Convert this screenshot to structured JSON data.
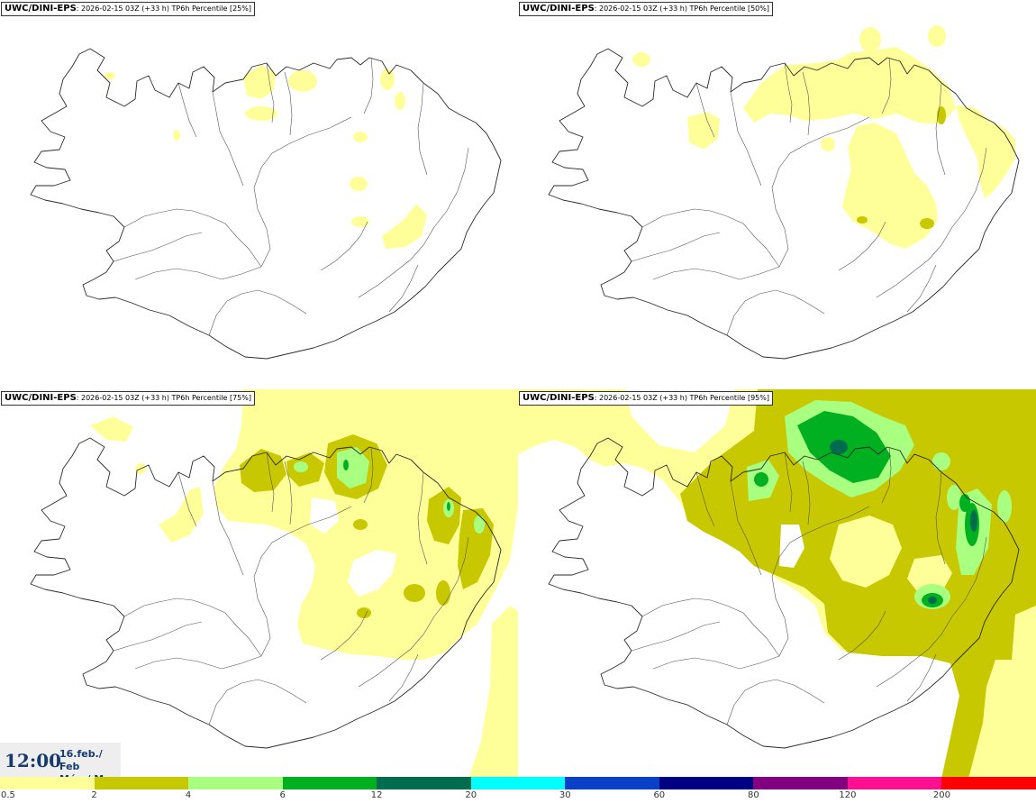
{
  "panels": [
    {
      "source": "UWC/DINI-EPS",
      "run": ": 2026-02-15 03Z (+33 h) ",
      "field": "TP6h Percentile [25%]",
      "percentile": 25
    },
    {
      "source": "UWC/DINI-EPS",
      "run": ": 2026-02-15 03Z (+33 h) ",
      "field": "TP6h Percentile [50%]",
      "percentile": 50
    },
    {
      "source": "UWC/DINI-EPS",
      "run": ": 2026-02-15 03Z (+33 h) ",
      "field": "TP6h Percentile [75%]",
      "percentile": 75
    },
    {
      "source": "UWC/DINI-EPS",
      "run": ": 2026-02-15 03Z (+33 h) ",
      "field": "TP6h Percentile [95%]",
      "percentile": 95
    }
  ],
  "valid": {
    "time": "12:00",
    "date": "16.feb./ Feb",
    "day": "Mán./ Mon"
  },
  "legend": {
    "ticks": [
      "0.5",
      "2",
      "4",
      "6",
      "12",
      "20",
      "30",
      "60",
      "80",
      "120",
      "200"
    ],
    "colors": [
      "#ffff9a",
      "#c8c800",
      "#a8ff80",
      "#00b020",
      "#006c4e",
      "#00ffff",
      "#0a3fc8",
      "#000080",
      "#800080",
      "#ff1090",
      "#ff0000"
    ]
  }
}
